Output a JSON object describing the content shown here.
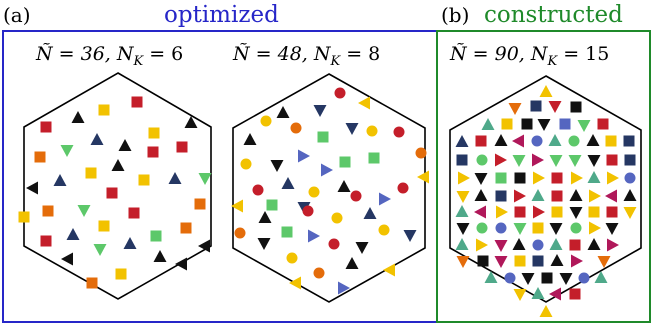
{
  "panels": {
    "a": {
      "label": "(a)",
      "title": "optimized",
      "title_color": "#2626c8"
    },
    "b": {
      "label": "(b)",
      "title": "constructed",
      "title_color": "#1f8a2a"
    }
  },
  "hexagons": [
    {
      "id": "hex1",
      "n_tilde": "Ñ = 36,",
      "n_k": "N",
      "n_k_sub": "K",
      "n_k_val": " = 6"
    },
    {
      "id": "hex2",
      "n_tilde": "Ñ = 48,",
      "n_k": "N",
      "n_k_sub": "K",
      "n_k_val": " = 8"
    },
    {
      "id": "hex3",
      "n_tilde": "Ñ = 90,",
      "n_k": "N",
      "n_k_sub": "K",
      "n_k_val": " = 15"
    }
  ],
  "colors": {
    "black": "#111111",
    "red": "#c41e2a",
    "green": "#5dc86a",
    "navy": "#253763",
    "yellow": "#f2c200",
    "orange": "#e46c0a",
    "blue": "#5566c0",
    "teal": "#4fa98a",
    "magenta": "#b0185a"
  },
  "markers": {
    "hex1": [
      [
        "sq",
        "red",
        46,
        127
      ],
      [
        "tri-up",
        "black",
        78,
        118
      ],
      [
        "sq",
        "yellow",
        104,
        110
      ],
      [
        "sq",
        "red",
        137,
        102
      ],
      [
        "sq",
        "yellow",
        154,
        133
      ],
      [
        "tri-up",
        "black",
        191,
        123
      ],
      [
        "sq",
        "orange",
        40,
        157
      ],
      [
        "tri-down",
        "green",
        67,
        150
      ],
      [
        "tri-up",
        "navy",
        97,
        140
      ],
      [
        "tri-up",
        "black",
        125,
        146
      ],
      [
        "sq",
        "red",
        153,
        152
      ],
      [
        "sq",
        "red",
        182,
        147
      ],
      [
        "tri-left",
        "black",
        33,
        188
      ],
      [
        "tri-up",
        "navy",
        60,
        181
      ],
      [
        "sq",
        "yellow",
        91,
        173
      ],
      [
        "tri-up",
        "black",
        118,
        166
      ],
      [
        "sq",
        "yellow",
        144,
        180
      ],
      [
        "tri-up",
        "navy",
        175,
        179
      ],
      [
        "tri-down",
        "green",
        205,
        178
      ],
      [
        "sq",
        "orange",
        48,
        211
      ],
      [
        "tri-down",
        "green",
        84,
        210
      ],
      [
        "sq",
        "red",
        112,
        193
      ],
      [
        "sq",
        "red",
        134,
        213
      ],
      [
        "sq",
        "orange",
        200,
        204
      ],
      [
        "sq",
        "yellow",
        24,
        217
      ],
      [
        "sq",
        "red",
        46,
        241
      ],
      [
        "tri-up",
        "navy",
        73,
        235
      ],
      [
        "sq",
        "yellow",
        104,
        226
      ],
      [
        "sq",
        "green",
        156,
        236
      ],
      [
        "sq",
        "orange",
        186,
        228
      ],
      [
        "tri-left",
        "black",
        205,
        246
      ],
      [
        "tri-left",
        "black",
        68,
        259
      ],
      [
        "tri-down",
        "green",
        100,
        249
      ],
      [
        "tri-up",
        "navy",
        130,
        244
      ],
      [
        "tri-up",
        "black",
        160,
        257
      ],
      [
        "sq",
        "yellow",
        121,
        274
      ],
      [
        "sq",
        "orange",
        92,
        283
      ],
      [
        "tri-left",
        "black",
        182,
        264
      ]
    ],
    "hex2": [
      [
        "circ",
        "red",
        340,
        93
      ],
      [
        "tri-left",
        "yellow",
        365,
        103
      ],
      [
        "tri-up",
        "black",
        283,
        113
      ],
      [
        "tri-down",
        "navy",
        320,
        110
      ],
      [
        "circ",
        "yellow",
        266,
        121
      ],
      [
        "circ",
        "orange",
        296,
        128
      ],
      [
        "sq",
        "green",
        323,
        137
      ],
      [
        "tri-down",
        "navy",
        352,
        128
      ],
      [
        "circ",
        "yellow",
        372,
        131
      ],
      [
        "tri-up",
        "black",
        250,
        140
      ],
      [
        "circ",
        "red",
        399,
        132
      ],
      [
        "tri-right",
        "blue",
        303,
        156
      ],
      [
        "sq",
        "green",
        345,
        162
      ],
      [
        "sq",
        "green",
        374,
        158
      ],
      [
        "circ",
        "orange",
        421,
        153
      ],
      [
        "circ",
        "yellow",
        246,
        164
      ],
      [
        "tri-down",
        "black",
        277,
        165
      ],
      [
        "tri-right",
        "blue",
        326,
        170
      ],
      [
        "circ",
        "red",
        258,
        190
      ],
      [
        "tri-up",
        "navy",
        288,
        184
      ],
      [
        "circ",
        "yellow",
        314,
        192
      ],
      [
        "tri-up",
        "black",
        344,
        187
      ],
      [
        "circ",
        "red",
        403,
        188
      ],
      [
        "tri-left",
        "yellow",
        424,
        177
      ],
      [
        "tri-left",
        "yellow",
        238,
        206
      ],
      [
        "sq",
        "green",
        272,
        205
      ],
      [
        "tri-down",
        "navy",
        304,
        207
      ],
      [
        "tri-up",
        "navy",
        370,
        214
      ],
      [
        "circ",
        "red",
        308,
        211
      ],
      [
        "tri-up",
        "black",
        265,
        218
      ],
      [
        "circ",
        "yellow",
        337,
        218
      ],
      [
        "circ",
        "red",
        356,
        196
      ],
      [
        "tri-right",
        "blue",
        384,
        199
      ],
      [
        "circ",
        "orange",
        240,
        233
      ],
      [
        "tri-down",
        "black",
        264,
        243
      ],
      [
        "sq",
        "green",
        287,
        232
      ],
      [
        "tri-right",
        "blue",
        313,
        236
      ],
      [
        "circ",
        "red",
        334,
        244
      ],
      [
        "tri-down",
        "black",
        362,
        247
      ],
      [
        "circ",
        "yellow",
        384,
        230
      ],
      [
        "tri-down",
        "navy",
        410,
        235
      ],
      [
        "circ",
        "yellow",
        292,
        258
      ],
      [
        "tri-up",
        "black",
        352,
        264
      ],
      [
        "tri-left",
        "yellow",
        390,
        270
      ],
      [
        "circ",
        "orange",
        319,
        273
      ],
      [
        "tri-right",
        "blue",
        343,
        288
      ],
      [
        "tri-left",
        "yellow",
        296,
        283
      ]
    ],
    "hex3": [
      [
        "tri-up",
        "yellow",
        546,
        92
      ],
      [
        "tri-down",
        "orange",
        515,
        108
      ],
      [
        "sq",
        "navy",
        536,
        106
      ],
      [
        "tri-down",
        "red",
        555,
        106
      ],
      [
        "sq",
        "black",
        576,
        107
      ],
      [
        "tri-up",
        "teal",
        488,
        125
      ],
      [
        "sq",
        "yellow",
        507,
        124
      ],
      [
        "sq",
        "black",
        527,
        124
      ],
      [
        "tri-down",
        "black",
        544,
        124
      ],
      [
        "sq",
        "blue",
        565,
        124
      ],
      [
        "tri-down",
        "green",
        584,
        125
      ],
      [
        "sq",
        "red",
        603,
        124
      ],
      [
        "tri-up",
        "navy",
        462,
        142
      ],
      [
        "sq",
        "red",
        481,
        141
      ],
      [
        "tri-up",
        "black",
        501,
        141
      ],
      [
        "tri-left",
        "magenta",
        519,
        141
      ],
      [
        "circ",
        "blue",
        537,
        141
      ],
      [
        "tri-up",
        "teal",
        555,
        141
      ],
      [
        "circ",
        "green",
        574,
        141
      ],
      [
        "tri-up",
        "black",
        593,
        141
      ],
      [
        "sq",
        "yellow",
        611,
        141
      ],
      [
        "sq",
        "navy",
        629,
        141
      ],
      [
        "sq",
        "navy",
        462,
        160
      ],
      [
        "circ",
        "green",
        482,
        160
      ],
      [
        "tri-right",
        "red",
        500,
        160
      ],
      [
        "tri-down",
        "green",
        519,
        160
      ],
      [
        "tri-right",
        "magenta",
        537,
        160
      ],
      [
        "tri-down",
        "green",
        556,
        160
      ],
      [
        "tri-down",
        "green",
        575,
        160
      ],
      [
        "tri-down",
        "black",
        594,
        160
      ],
      [
        "sq",
        "red",
        612,
        160
      ],
      [
        "sq",
        "navy",
        630,
        160
      ],
      [
        "tri-right",
        "yellow",
        463,
        178
      ],
      [
        "tri-down",
        "black",
        481,
        178
      ],
      [
        "sq",
        "green",
        501,
        178
      ],
      [
        "sq",
        "black",
        520,
        178
      ],
      [
        "tri-right",
        "yellow",
        538,
        178
      ],
      [
        "sq",
        "red",
        557,
        178
      ],
      [
        "tri-right",
        "yellow",
        576,
        178
      ],
      [
        "tri-up",
        "teal",
        594,
        178
      ],
      [
        "tri-right",
        "yellow",
        612,
        178
      ],
      [
        "circ",
        "blue",
        630,
        178
      ],
      [
        "tri-down",
        "yellow",
        463,
        196
      ],
      [
        "tri-up",
        "black",
        481,
        196
      ],
      [
        "sq",
        "navy",
        501,
        196
      ],
      [
        "tri-right",
        "red",
        519,
        196
      ],
      [
        "tri-up",
        "teal",
        538,
        196
      ],
      [
        "sq",
        "red",
        557,
        196
      ],
      [
        "tri-up",
        "black",
        576,
        196
      ],
      [
        "tri-right",
        "yellow",
        594,
        196
      ],
      [
        "tri-left",
        "magenta",
        612,
        196
      ],
      [
        "tri-up",
        "black",
        630,
        196
      ],
      [
        "tri-up",
        "teal",
        462,
        212
      ],
      [
        "tri-left",
        "magenta",
        481,
        212
      ],
      [
        "tri-right",
        "yellow",
        501,
        212
      ],
      [
        "sq",
        "red",
        520,
        212
      ],
      [
        "tri-right",
        "red",
        538,
        212
      ],
      [
        "sq",
        "yellow",
        557,
        212
      ],
      [
        "tri-down",
        "black",
        576,
        212
      ],
      [
        "sq",
        "yellow",
        594,
        212
      ],
      [
        "sq",
        "red",
        612,
        212
      ],
      [
        "tri-down",
        "yellow",
        630,
        212
      ],
      [
        "tri-down",
        "black",
        463,
        228
      ],
      [
        "circ",
        "green",
        482,
        228
      ],
      [
        "circ",
        "blue",
        501,
        228
      ],
      [
        "tri-down",
        "green",
        520,
        228
      ],
      [
        "sq",
        "yellow",
        538,
        228
      ],
      [
        "tri-down",
        "black",
        556,
        228
      ],
      [
        "circ",
        "green",
        576,
        228
      ],
      [
        "tri-right",
        "yellow",
        594,
        228
      ],
      [
        "tri-down",
        "black",
        612,
        228
      ],
      [
        "tri-up",
        "teal",
        462,
        245
      ],
      [
        "tri-right",
        "yellow",
        481,
        245
      ],
      [
        "tri-down",
        "magenta",
        501,
        245
      ],
      [
        "tri-up",
        "black",
        519,
        245
      ],
      [
        "circ",
        "blue",
        538,
        245
      ],
      [
        "tri-up",
        "teal",
        556,
        245
      ],
      [
        "sq",
        "red",
        575,
        245
      ],
      [
        "tri-up",
        "black",
        594,
        245
      ],
      [
        "tri-right",
        "magenta",
        612,
        245
      ],
      [
        "tri-down",
        "orange",
        463,
        261
      ],
      [
        "sq",
        "black",
        483,
        261
      ],
      [
        "tri-down",
        "magenta",
        501,
        261
      ],
      [
        "sq",
        "yellow",
        520,
        261
      ],
      [
        "sq",
        "navy",
        538,
        261
      ],
      [
        "tri-up",
        "black",
        557,
        261
      ],
      [
        "tri-right",
        "magenta",
        576,
        261
      ],
      [
        "tri-down",
        "orange",
        604,
        261
      ],
      [
        "tri-up",
        "teal",
        491,
        278
      ],
      [
        "circ",
        "blue",
        510,
        278
      ],
      [
        "tri-down",
        "black",
        528,
        278
      ],
      [
        "sq",
        "black",
        547,
        278
      ],
      [
        "tri-down",
        "black",
        566,
        278
      ],
      [
        "circ",
        "blue",
        584,
        278
      ],
      [
        "tri-up",
        "teal",
        601,
        278
      ],
      [
        "tri-down",
        "yellow",
        520,
        294
      ],
      [
        "tri-up",
        "teal",
        538,
        294
      ],
      [
        "tri-left",
        "magenta",
        556,
        294
      ],
      [
        "sq",
        "red",
        575,
        294
      ],
      [
        "tri-up",
        "yellow",
        546,
        312
      ]
    ]
  }
}
